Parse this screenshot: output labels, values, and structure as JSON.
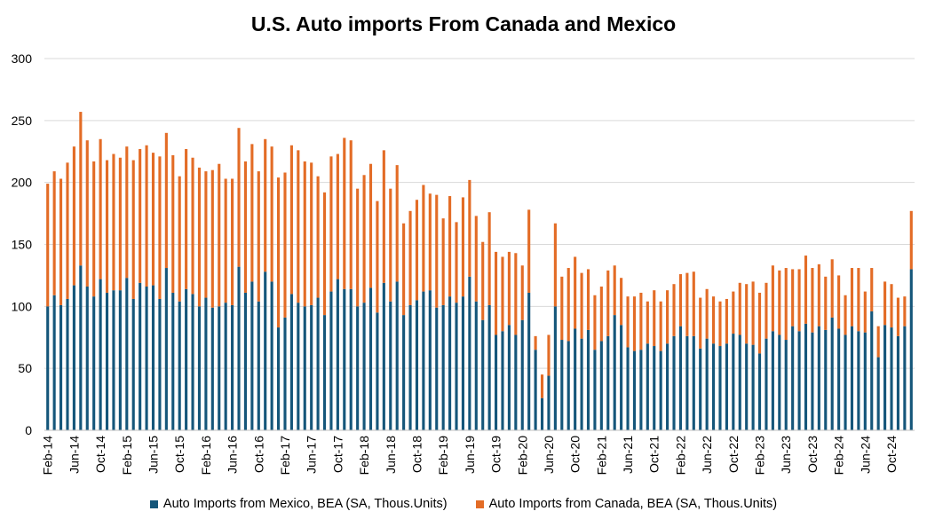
{
  "chart_data": {
    "type": "bar",
    "stacked": true,
    "title": "U.S. Auto imports From Canada and Mexico",
    "xlabel": "",
    "ylabel": "",
    "ylim": [
      0,
      300
    ],
    "yticks": [
      0,
      50,
      100,
      150,
      200,
      250,
      300
    ],
    "grid": true,
    "legend_position": "bottom",
    "x_tick_labels": [
      "Feb-14",
      "Jun-14",
      "Oct-14",
      "Feb-15",
      "Jun-15",
      "Oct-15",
      "Feb-16",
      "Jun-16",
      "Oct-16",
      "Feb-17",
      "Jun-17",
      "Oct-17",
      "Feb-18",
      "Jun-18",
      "Oct-18",
      "Feb-19",
      "Jun-19",
      "Oct-19",
      "Feb-20",
      "Jun-20",
      "Oct-20",
      "Feb-21",
      "Jun-21",
      "Oct-21",
      "Feb-22",
      "Jun-22",
      "Oct-22",
      "Feb-23",
      "Jun-23",
      "Oct-23",
      "Feb-24",
      "Jun-24",
      "Oct-24"
    ],
    "series": [
      {
        "name": "Auto Imports from Mexico, BEA (SA, Thous.Units)",
        "color": "#15567a",
        "values": [
          100,
          109,
          101,
          106,
          117,
          133,
          116,
          108,
          122,
          111,
          113,
          113,
          123,
          106,
          119,
          116,
          117,
          106,
          131,
          111,
          104,
          114,
          110,
          100,
          107,
          99,
          100,
          103,
          101,
          132,
          111,
          120,
          104,
          128,
          120,
          83,
          91,
          110,
          103,
          100,
          101,
          107,
          93,
          112,
          122,
          114,
          114,
          100,
          103,
          115,
          95,
          119,
          104,
          120,
          93,
          101,
          105,
          112,
          113,
          99,
          101,
          108,
          103,
          108,
          124,
          104,
          89,
          101,
          77,
          80,
          85,
          77,
          89,
          111,
          65,
          26,
          44,
          100,
          73,
          72,
          82,
          74,
          81,
          65,
          72,
          76,
          93,
          85,
          67,
          64,
          65,
          70,
          68,
          64,
          70,
          76,
          84,
          76,
          76,
          66,
          74,
          70,
          68,
          70,
          78,
          77,
          70,
          69,
          62,
          74,
          80,
          77,
          73,
          84,
          80,
          86,
          79,
          84,
          81,
          91,
          82,
          77,
          84,
          80,
          79,
          96,
          59,
          85,
          83,
          76,
          84,
          130
        ]
      },
      {
        "name": "Auto Imports from Canada, BEA (SA, Thous.Units)",
        "color": "#e36c26",
        "values": [
          99,
          100,
          102,
          110,
          112,
          124,
          118,
          109,
          113,
          107,
          110,
          107,
          106,
          112,
          108,
          114,
          107,
          115,
          109,
          111,
          101,
          113,
          110,
          112,
          102,
          111,
          115,
          100,
          102,
          112,
          106,
          111,
          105,
          107,
          109,
          121,
          117,
          120,
          123,
          117,
          115,
          98,
          99,
          109,
          101,
          122,
          120,
          95,
          103,
          100,
          90,
          107,
          91,
          94,
          74,
          76,
          81,
          86,
          78,
          91,
          70,
          81,
          65,
          80,
          78,
          69,
          63,
          75,
          67,
          60,
          59,
          66,
          44,
          67,
          11,
          19,
          33,
          67,
          51,
          59,
          58,
          53,
          49,
          44,
          44,
          53,
          40,
          38,
          41,
          44,
          46,
          34,
          45,
          40,
          43,
          42,
          42,
          51,
          52,
          41,
          40,
          38,
          36,
          36,
          34,
          42,
          48,
          51,
          49,
          45,
          53,
          52,
          58,
          46,
          50,
          55,
          52,
          50,
          43,
          47,
          43,
          32,
          47,
          51,
          33,
          35,
          25,
          35,
          35,
          31,
          24,
          47
        ]
      }
    ]
  }
}
